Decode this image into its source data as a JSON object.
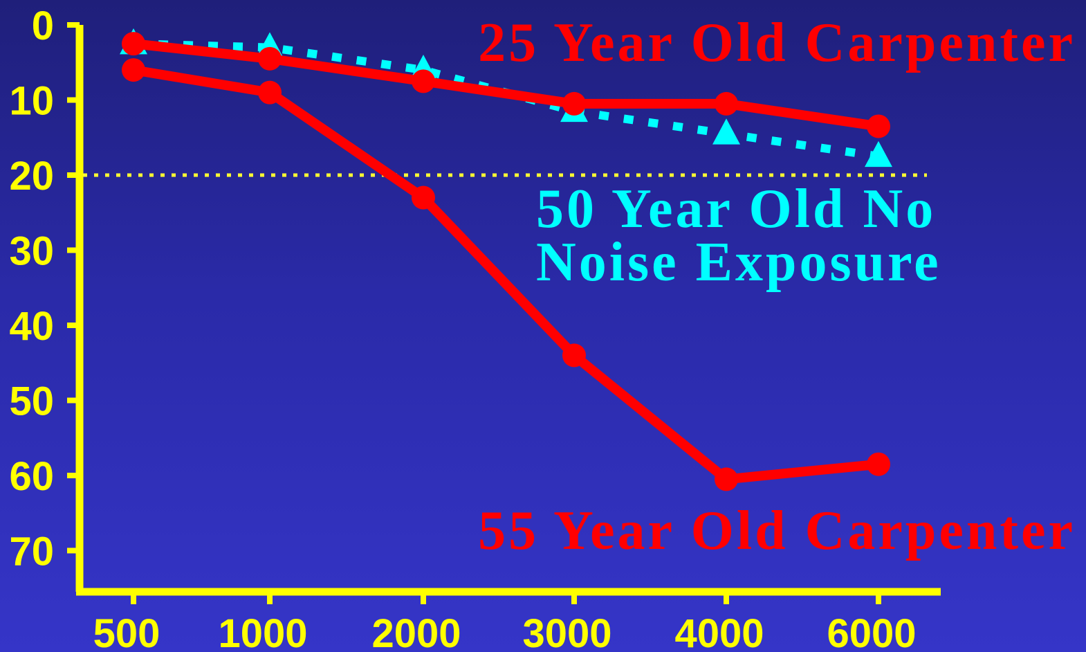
{
  "colors": {
    "axis": "#ffff00",
    "reference_line": "#ffff33",
    "carpenter": "#ff0000",
    "no_noise": "#00ffff"
  },
  "chart_data": {
    "type": "line",
    "categories": [
      "500",
      "1000",
      "2000",
      "3000",
      "4000",
      "6000"
    ],
    "y_ticks": [
      "0",
      "10",
      "20",
      "30",
      "40",
      "50",
      "60",
      "70"
    ],
    "ylim": [
      0,
      73
    ],
    "y_inverted": true,
    "grid": false,
    "reference_line": {
      "y": 20,
      "style": "dotted"
    },
    "series": [
      {
        "name": "25 Year Old Carpenter",
        "values": [
          2.5,
          4.5,
          7.5,
          10.5,
          10.5,
          13.5
        ],
        "style": "solid",
        "marker": "circle"
      },
      {
        "name": "55 Year Old Carpenter",
        "values": [
          6,
          9,
          23,
          44,
          60.5,
          58.5
        ],
        "style": "solid",
        "marker": "circle"
      },
      {
        "name": "50 Year Old No Noise Exposure",
        "name_lines": [
          "50 Year Old No",
          "Noise Exposure"
        ],
        "values": [
          2.5,
          3,
          6,
          11.5,
          14.5,
          17.5
        ],
        "style": "dotted",
        "marker": "triangle"
      }
    ]
  }
}
